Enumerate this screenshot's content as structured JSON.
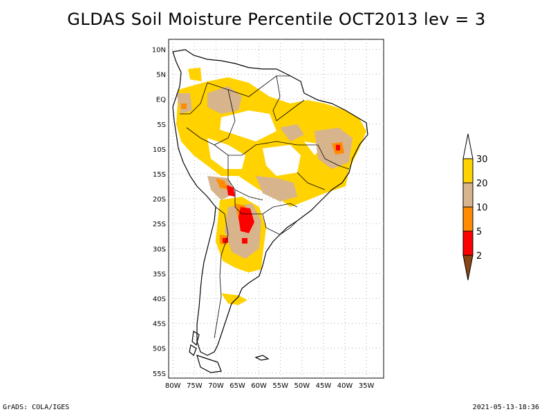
{
  "title": "GLDAS Soil Moisture Percentile OCT2013 lev = 3",
  "footer": {
    "left": "GrADS: COLA/IGES",
    "right": "2021-05-13-18:36"
  },
  "map": {
    "lon_range": [
      -81,
      -31
    ],
    "lat_range": [
      -56,
      12
    ],
    "lon_ticks": [
      "80W",
      "75W",
      "70W",
      "65W",
      "60W",
      "55W",
      "50W",
      "45W",
      "40W",
      "35W"
    ],
    "lat_ticks": [
      "10N",
      "5N",
      "EQ",
      "5S",
      "10S",
      "15S",
      "20S",
      "25S",
      "30S",
      "35S",
      "40S",
      "45S",
      "50S",
      "55S"
    ],
    "grid": true
  },
  "legend": {
    "labels": [
      "30",
      "20",
      "10",
      "5",
      "2"
    ],
    "colors": {
      "above30": "#ffffff",
      "c20_30": "#ffd200",
      "c10_20": "#d8b48c",
      "c5_10": "#ff8c00",
      "c2_5": "#ff0000",
      "below2": "#8b4513"
    }
  }
}
